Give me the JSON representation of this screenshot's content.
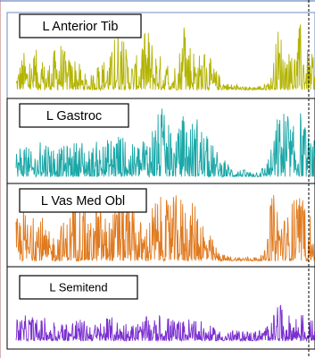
{
  "chart_data": {
    "type": "line",
    "description_kind": "stacked EMG traces",
    "grid": false,
    "legend": "inside each panel, top-left",
    "marker_line": "dashed vertical",
    "series": [
      {
        "name": "L Anterior Tib",
        "color": "#b3b300",
        "baseline": 0.9,
        "envelope": [
          0.25,
          0.55,
          0.4,
          0.6,
          0.35,
          0.5,
          0.75,
          0.45,
          0.5,
          0.3,
          0.15,
          0.35,
          0.45,
          0.5,
          0.95,
          0.6,
          0.4,
          0.55,
          0.9,
          0.65,
          0.45,
          0.35,
          0.4,
          0.95,
          0.7,
          0.5,
          0.6,
          0.35,
          0.2,
          0.1,
          0.08,
          0.05,
          0.05,
          0.06,
          0.08,
          0.2,
          0.95,
          0.6,
          0.5,
          0.95,
          0.55,
          0.45
        ]
      },
      {
        "name": "L Gastroc",
        "color": "#1aa7a7",
        "baseline": 0.92,
        "envelope": [
          0.4,
          0.55,
          0.35,
          0.45,
          0.6,
          0.5,
          0.4,
          0.45,
          0.5,
          0.55,
          0.4,
          0.5,
          0.45,
          0.6,
          0.7,
          0.5,
          0.45,
          0.55,
          0.65,
          0.85,
          0.95,
          0.7,
          0.55,
          0.95,
          0.8,
          0.9,
          0.6,
          0.45,
          0.3,
          0.2,
          0.12,
          0.1,
          0.08,
          0.1,
          0.15,
          0.4,
          0.95,
          0.95,
          0.7,
          0.95,
          0.6,
          0.5
        ]
      },
      {
        "name": "L Vas Med Obl",
        "color": "#e07a1f",
        "baseline": 0.93,
        "envelope": [
          0.6,
          0.85,
          0.5,
          0.95,
          0.45,
          0.4,
          0.55,
          0.6,
          0.95,
          0.85,
          0.5,
          0.9,
          0.7,
          0.6,
          0.95,
          0.9,
          0.75,
          0.6,
          0.55,
          0.95,
          0.9,
          0.85,
          0.95,
          0.95,
          0.8,
          0.95,
          0.5,
          0.3,
          0.1,
          0.08,
          0.06,
          0.06,
          0.06,
          0.06,
          0.1,
          0.95,
          0.95,
          0.6,
          0.9,
          0.95,
          0.7,
          0.5
        ]
      },
      {
        "name": "L Semitend",
        "color": "#7a2fd0",
        "baseline": 0.9,
        "envelope": [
          0.3,
          0.35,
          0.4,
          0.3,
          0.35,
          0.3,
          0.25,
          0.3,
          0.35,
          0.3,
          0.3,
          0.25,
          0.3,
          0.35,
          0.3,
          0.3,
          0.25,
          0.3,
          0.35,
          0.3,
          0.4,
          0.35,
          0.3,
          0.3,
          0.35,
          0.3,
          0.25,
          0.2,
          0.15,
          0.15,
          0.15,
          0.15,
          0.15,
          0.15,
          0.2,
          0.3,
          0.55,
          0.4,
          0.35,
          0.45,
          0.3,
          0.3
        ]
      }
    ]
  }
}
